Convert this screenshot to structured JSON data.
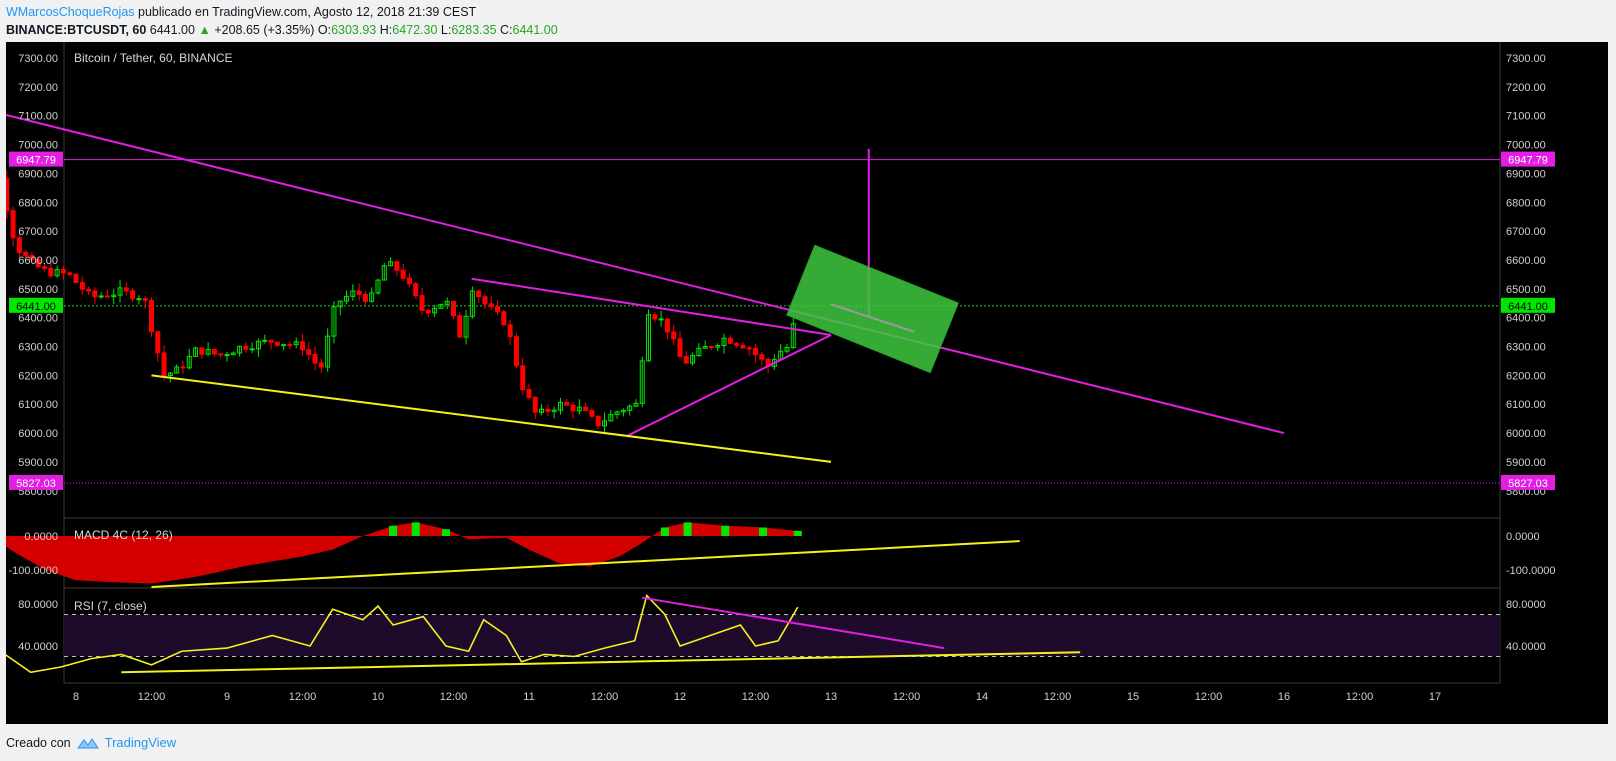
{
  "header": {
    "author": "WMarcosChoqueRojas",
    "published": " publicado en TradingView.com, Agosto 12, 2018 21:39 CEST",
    "symbol": "BINANCE:BTCUSDT, 60",
    "last": "6441.00",
    "change": "+208.65 (+3.35%)",
    "o_label": "O:",
    "o_value": "6303.93",
    "h_label": "H:",
    "h_value": "6472.30",
    "l_label": "L:",
    "l_value": "6283.35",
    "c_label": "C:",
    "c_value": "6441.00"
  },
  "footer": {
    "created_with": "Creado con",
    "brand": "TradingView"
  },
  "colors": {
    "up": "#00e600",
    "down": "#ff0000",
    "magenta": "#e21ee2",
    "yellow": "#f5f11e",
    "level": "#e21ee2",
    "price_line": "#2ec52e"
  },
  "chart_data": {
    "type": "candlestick",
    "title": "Bitcoin / Tether, 60, BINANCE",
    "x_ticks": [
      "8",
      "12:00",
      "9",
      "12:00",
      "10",
      "12:00",
      "11",
      "12:00",
      "12",
      "12:00",
      "13",
      "12:00",
      "14",
      "12:00",
      "15",
      "12:00",
      "16",
      "12:00",
      "17"
    ],
    "y_ticks": [
      "7300.00",
      "7200.00",
      "7100.00",
      "7000.00",
      "6900.00",
      "6800.00",
      "6700.00",
      "6600.00",
      "6500.00",
      "6400.00",
      "6300.00",
      "6200.00",
      "6100.00",
      "6000.00",
      "5900.00",
      "5800.00"
    ],
    "ylim": [
      5780,
      7350
    ],
    "levels": [
      {
        "price": 6947.79,
        "label": "6947.79"
      },
      {
        "price": 5827.03,
        "label": "5827.03"
      }
    ],
    "last_price": {
      "price": 6441.0,
      "label": "6441.00"
    },
    "close_path": [
      [
        7.25,
        7120
      ],
      [
        7.4,
        7100
      ],
      [
        7.5,
        6880
      ],
      [
        7.6,
        6650
      ],
      [
        7.7,
        6590
      ],
      [
        7.8,
        6560
      ],
      [
        7.95,
        6550
      ],
      [
        8.1,
        6470
      ],
      [
        8.3,
        6490
      ],
      [
        8.45,
        6470
      ],
      [
        8.58,
        6200
      ],
      [
        8.68,
        6220
      ],
      [
        8.8,
        6290
      ],
      [
        8.95,
        6270
      ],
      [
        9.1,
        6300
      ],
      [
        9.3,
        6320
      ],
      [
        9.5,
        6300
      ],
      [
        9.62,
        6220
      ],
      [
        9.72,
        6450
      ],
      [
        9.85,
        6490
      ],
      [
        9.95,
        6460
      ],
      [
        10.05,
        6590
      ],
      [
        10.15,
        6560
      ],
      [
        10.3,
        6420
      ],
      [
        10.45,
        6460
      ],
      [
        10.55,
        6330
      ],
      [
        10.62,
        6510
      ],
      [
        10.72,
        6440
      ],
      [
        10.85,
        6380
      ],
      [
        10.95,
        6170
      ],
      [
        11.05,
        6060
      ],
      [
        11.2,
        6100
      ],
      [
        11.35,
        6080
      ],
      [
        11.45,
        6030
      ],
      [
        11.6,
        6080
      ],
      [
        11.72,
        6100
      ],
      [
        11.78,
        6430
      ],
      [
        11.9,
        6380
      ],
      [
        12.02,
        6240
      ],
      [
        12.15,
        6290
      ],
      [
        12.3,
        6330
      ],
      [
        12.45,
        6300
      ],
      [
        12.58,
        6230
      ],
      [
        12.65,
        6280
      ],
      [
        12.72,
        6300
      ],
      [
        12.78,
        6441
      ]
    ],
    "trendlines": [
      {
        "color": "magenta",
        "from": [
          7.25,
          7140
        ],
        "to": [
          16.0,
          6000
        ]
      },
      {
        "color": "magenta",
        "from": [
          10.62,
          6535
        ],
        "to": [
          13.0,
          6340
        ]
      },
      {
        "color": "magenta",
        "from": [
          11.65,
          5990
        ],
        "to": [
          13.0,
          6340
        ]
      },
      {
        "color": "yellow",
        "from": [
          8.5,
          6200
        ],
        "to": [
          13.0,
          5900
        ]
      },
      {
        "color": "magenta",
        "from": [
          13.25,
          6400
        ],
        "to": [
          13.25,
          6985
        ]
      }
    ],
    "target_box": {
      "from": [
        12.8,
        6530
      ],
      "to": [
        13.75,
        6330
      ],
      "thickness": 75
    },
    "macd": {
      "title": "MACD 4C (12, 26)",
      "y_ticks": [
        "0.0000",
        "-100.0000"
      ],
      "ylim": [
        -150,
        45
      ],
      "hist": [
        [
          7.25,
          40
        ],
        [
          7.4,
          10
        ],
        [
          7.6,
          -50
        ],
        [
          7.8,
          -100
        ],
        [
          8.0,
          -130
        ],
        [
          8.2,
          -135
        ],
        [
          8.5,
          -140
        ],
        [
          8.8,
          -120
        ],
        [
          9.1,
          -90
        ],
        [
          9.5,
          -60
        ],
        [
          9.7,
          -40
        ],
        [
          9.9,
          0
        ],
        [
          10.1,
          30
        ],
        [
          10.25,
          40
        ],
        [
          10.45,
          20
        ],
        [
          10.6,
          -10
        ],
        [
          10.85,
          -5
        ],
        [
          11.0,
          -40
        ],
        [
          11.2,
          -80
        ],
        [
          11.4,
          -90
        ],
        [
          11.6,
          -60
        ],
        [
          11.75,
          -20
        ],
        [
          11.9,
          25
        ],
        [
          12.05,
          40
        ],
        [
          12.3,
          30
        ],
        [
          12.55,
          25
        ],
        [
          12.78,
          15
        ]
      ],
      "trendline": {
        "from": [
          8.5,
          -150
        ],
        "to": [
          14.25,
          -15
        ]
      }
    },
    "rsi": {
      "title": "RSI (7, close)",
      "y_ticks": [
        "80.0000",
        "40.0000"
      ],
      "ylim": [
        10,
        92
      ],
      "upper": 70,
      "lower": 30,
      "values": [
        [
          7.25,
          70
        ],
        [
          7.45,
          40
        ],
        [
          7.7,
          15
        ],
        [
          7.9,
          20
        ],
        [
          8.1,
          28
        ],
        [
          8.3,
          32
        ],
        [
          8.5,
          22
        ],
        [
          8.7,
          35
        ],
        [
          9.0,
          38
        ],
        [
          9.3,
          50
        ],
        [
          9.55,
          40
        ],
        [
          9.7,
          75
        ],
        [
          9.9,
          65
        ],
        [
          10.0,
          78
        ],
        [
          10.1,
          60
        ],
        [
          10.3,
          68
        ],
        [
          10.45,
          40
        ],
        [
          10.6,
          35
        ],
        [
          10.7,
          65
        ],
        [
          10.85,
          50
        ],
        [
          10.95,
          25
        ],
        [
          11.1,
          32
        ],
        [
          11.3,
          30
        ],
        [
          11.5,
          38
        ],
        [
          11.7,
          45
        ],
        [
          11.78,
          88
        ],
        [
          11.9,
          70
        ],
        [
          12.0,
          40
        ],
        [
          12.2,
          50
        ],
        [
          12.4,
          60
        ],
        [
          12.5,
          40
        ],
        [
          12.65,
          45
        ],
        [
          12.78,
          77
        ]
      ],
      "trendlines": [
        {
          "color": "magenta",
          "from": [
            11.75,
            86
          ],
          "to": [
            13.75,
            38
          ]
        },
        {
          "color": "yellow",
          "from": [
            8.3,
            15
          ],
          "to": [
            14.65,
            34
          ]
        }
      ]
    }
  }
}
